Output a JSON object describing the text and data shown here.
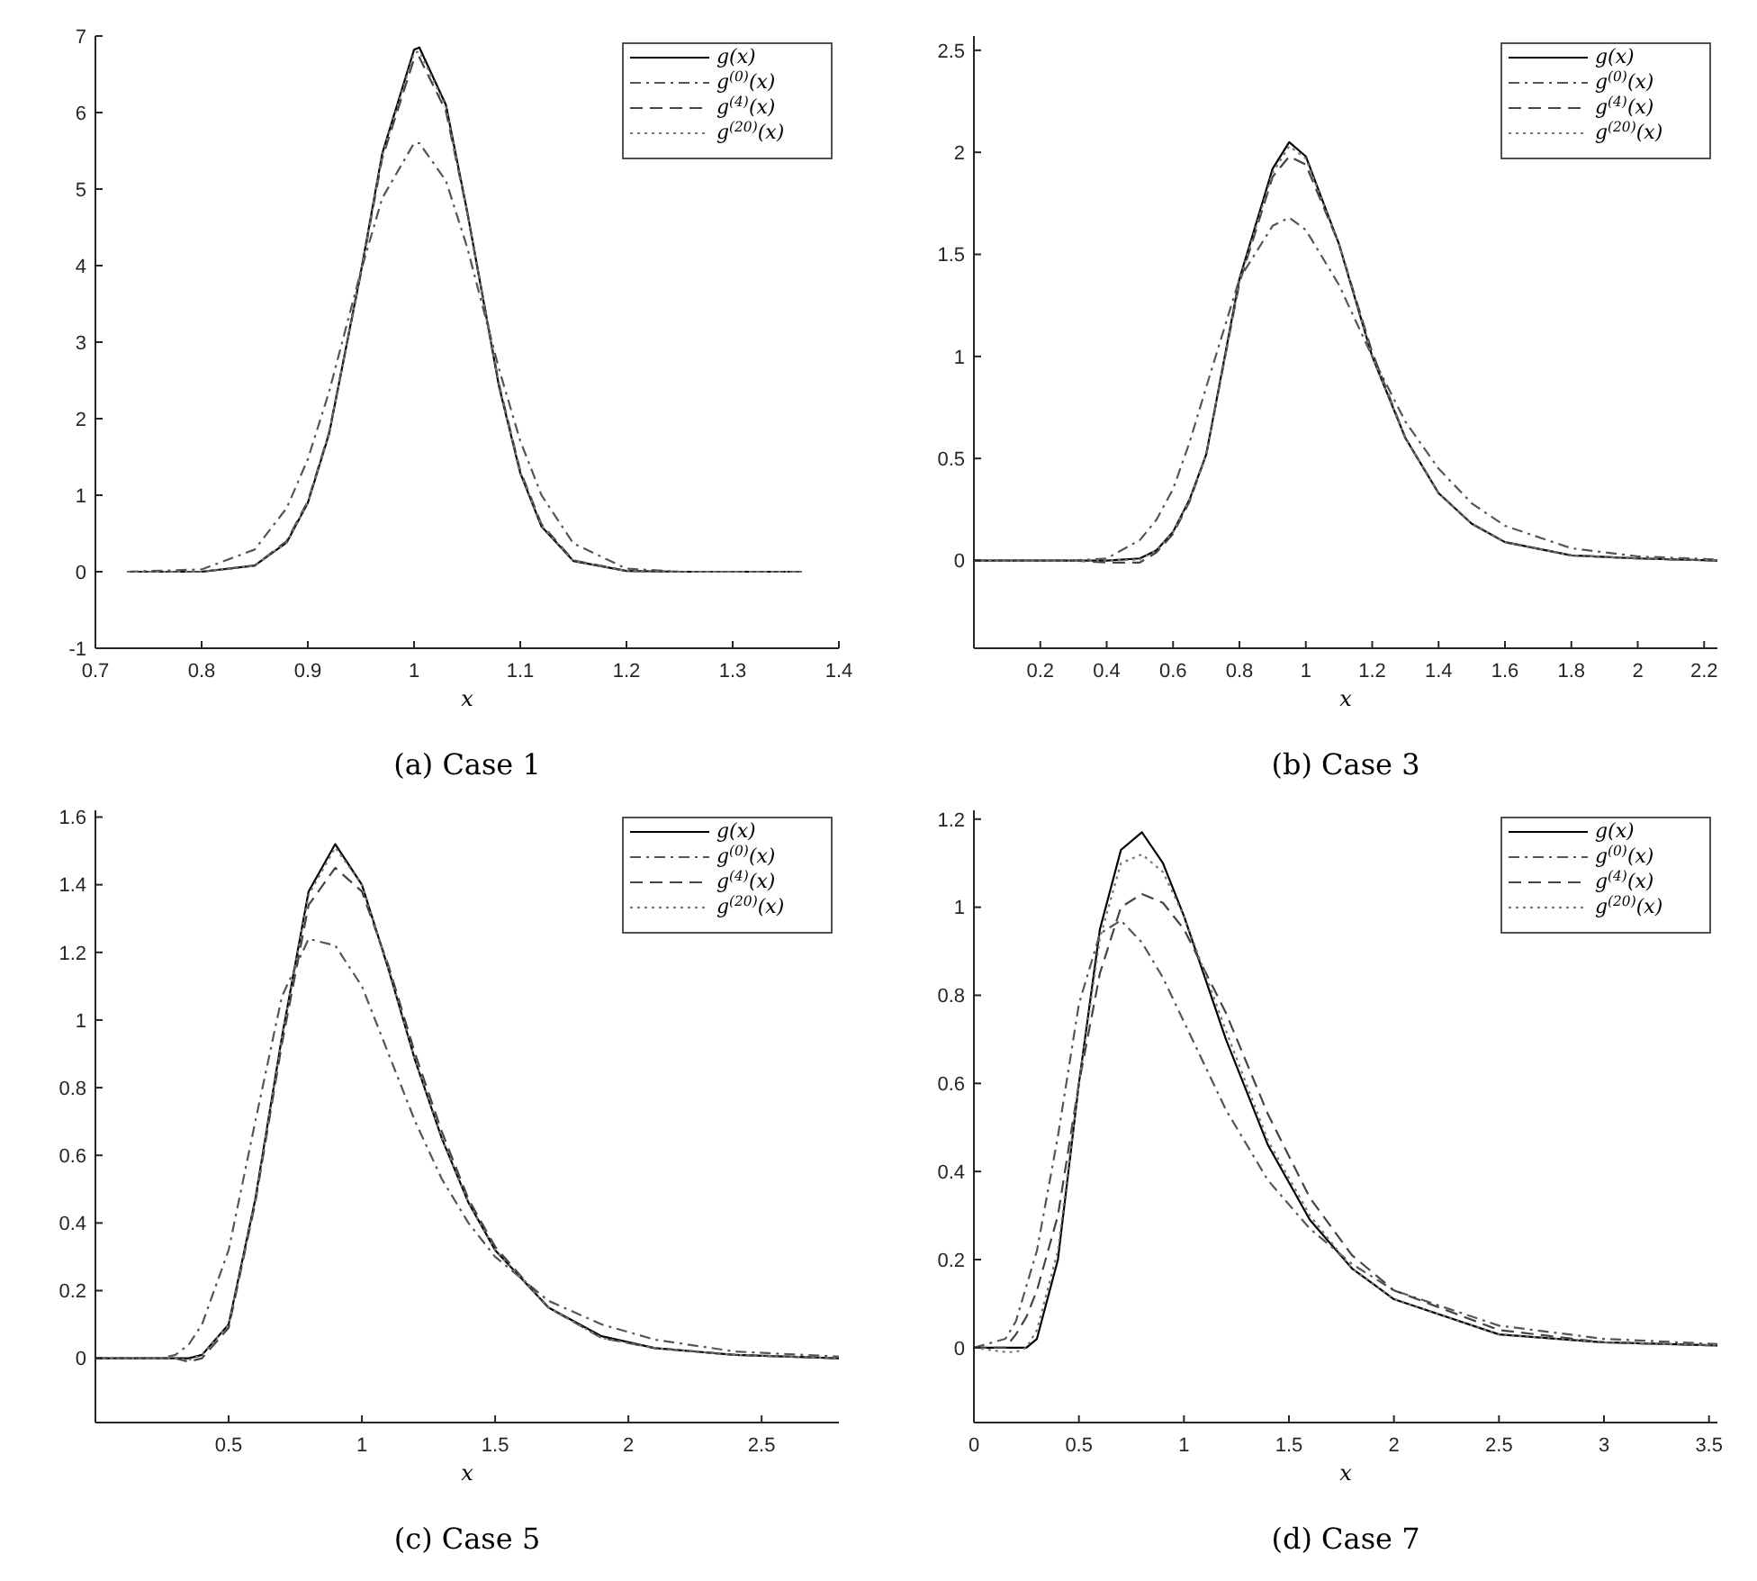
{
  "chart_data": [
    {
      "type": "line",
      "title": "(a) Case 1",
      "xlabel": "x",
      "legend": "top right",
      "xlim": [
        0.7,
        1.4
      ],
      "xticks": [
        0.7,
        0.8,
        0.9,
        1,
        1.1,
        1.2,
        1.3,
        1.4
      ],
      "ylim": [
        -1,
        7
      ],
      "yticks": [
        -1,
        0,
        1,
        2,
        3,
        4,
        5,
        6,
        7
      ],
      "x": [
        0.73,
        0.8,
        0.85,
        0.88,
        0.9,
        0.92,
        0.95,
        0.97,
        1.0,
        1.005,
        1.03,
        1.05,
        1.08,
        1.1,
        1.12,
        1.15,
        1.2,
        1.25,
        1.3,
        1.365
      ],
      "series": [
        {
          "name": "g(x)",
          "color": "#000000",
          "line_style": "solid",
          "values": [
            0,
            0,
            0.08,
            0.38,
            0.9,
            1.8,
            3.92,
            5.46,
            6.82,
            6.85,
            6.1,
            4.71,
            2.42,
            1.29,
            0.59,
            0.14,
            0.01,
            0,
            0,
            0
          ]
        },
        {
          "name": "g$^{(0)}$(x)",
          "color": "#555555",
          "line_style": "dashdot",
          "values": [
            0,
            0.03,
            0.29,
            0.83,
            1.47,
            2.35,
            3.93,
            4.88,
            5.6,
            5.6,
            5.11,
            4.24,
            2.65,
            1.71,
            1.0,
            0.37,
            0.04,
            0,
            0,
            0
          ]
        },
        {
          "name": "g$^{(4)}$(x)",
          "color": "#444444",
          "line_style": "dashed",
          "values": [
            0,
            0,
            0.08,
            0.4,
            0.92,
            1.82,
            3.9,
            5.4,
            6.7,
            6.72,
            6.02,
            4.7,
            2.45,
            1.32,
            0.62,
            0.15,
            0.01,
            0,
            0,
            0
          ]
        },
        {
          "name": "g$^{(20)}$(x)",
          "color": "#777777",
          "line_style": "dotted",
          "values": [
            0,
            0,
            0.08,
            0.38,
            0.9,
            1.8,
            3.92,
            5.44,
            6.78,
            6.8,
            6.08,
            4.7,
            2.42,
            1.3,
            0.6,
            0.14,
            0.01,
            0,
            0,
            0
          ]
        }
      ]
    },
    {
      "type": "line",
      "title": "(b) Case 3",
      "xlabel": "x",
      "legend": "top right",
      "xlim": [
        0,
        2.24
      ],
      "xticks": [
        0.2,
        0.4,
        0.6,
        0.8,
        1,
        1.2,
        1.4,
        1.6,
        1.8,
        2,
        2.2
      ],
      "ylim": [
        -0.43,
        2.57
      ],
      "yticks": [
        0,
        0.5,
        1,
        1.5,
        2,
        2.5
      ],
      "x": [
        0,
        0.3,
        0.4,
        0.5,
        0.55,
        0.6,
        0.65,
        0.7,
        0.8,
        0.9,
        0.95,
        1.0,
        1.1,
        1.2,
        1.3,
        1.4,
        1.5,
        1.6,
        1.8,
        2.0,
        2.24
      ],
      "series": [
        {
          "name": "g(x)",
          "color": "#000000",
          "line_style": "solid",
          "values": [
            0,
            0,
            0,
            0.01,
            0.05,
            0.14,
            0.3,
            0.52,
            1.38,
            1.92,
            2.05,
            1.98,
            1.55,
            1.0,
            0.6,
            0.33,
            0.18,
            0.09,
            0.025,
            0.01,
            0
          ]
        },
        {
          "name": "g$^{(0)}$(x)",
          "color": "#555555",
          "line_style": "dashdot",
          "values": [
            0,
            0,
            0.01,
            0.1,
            0.2,
            0.35,
            0.58,
            0.85,
            1.38,
            1.64,
            1.68,
            1.62,
            1.35,
            1.0,
            0.68,
            0.45,
            0.28,
            0.17,
            0.06,
            0.02,
            0.005
          ]
        },
        {
          "name": "g$^{(4)}$(x)",
          "color": "#444444",
          "line_style": "dashed",
          "values": [
            0,
            0,
            -0.01,
            -0.01,
            0.04,
            0.13,
            0.29,
            0.52,
            1.36,
            1.88,
            1.98,
            1.94,
            1.55,
            1.02,
            0.6,
            0.33,
            0.18,
            0.09,
            0.025,
            0.01,
            0
          ]
        },
        {
          "name": "g$^{(20)}$(x)",
          "color": "#777777",
          "line_style": "dotted",
          "values": [
            0,
            0,
            0,
            0.005,
            0.05,
            0.14,
            0.3,
            0.52,
            1.37,
            1.9,
            2.03,
            1.97,
            1.55,
            1.0,
            0.6,
            0.33,
            0.18,
            0.09,
            0.025,
            0.01,
            0
          ]
        }
      ]
    },
    {
      "type": "line",
      "title": "(c) Case 5",
      "xlabel": "x",
      "legend": "top right",
      "xlim": [
        0,
        2.79
      ],
      "xticks": [
        0.5,
        1,
        1.5,
        2,
        2.5
      ],
      "ylim": [
        -0.19,
        1.62
      ],
      "yticks": [
        0,
        0.2,
        0.4,
        0.6,
        0.8,
        1,
        1.2,
        1.4,
        1.6
      ],
      "x": [
        0,
        0.25,
        0.3,
        0.35,
        0.4,
        0.5,
        0.6,
        0.7,
        0.8,
        0.9,
        1.0,
        1.1,
        1.2,
        1.3,
        1.4,
        1.5,
        1.7,
        1.9,
        2.1,
        2.4,
        2.79
      ],
      "series": [
        {
          "name": "g(x)",
          "color": "#000000",
          "line_style": "solid",
          "values": [
            0,
            0,
            0,
            0,
            0.01,
            0.1,
            0.47,
            0.95,
            1.38,
            1.52,
            1.4,
            1.15,
            0.88,
            0.65,
            0.46,
            0.32,
            0.15,
            0.065,
            0.03,
            0.01,
            0
          ]
        },
        {
          "name": "g$^{(0)}$(x)",
          "color": "#555555",
          "line_style": "dashdot",
          "values": [
            0,
            0,
            0.01,
            0.04,
            0.1,
            0.32,
            0.7,
            1.07,
            1.24,
            1.22,
            1.1,
            0.9,
            0.7,
            0.53,
            0.4,
            0.3,
            0.17,
            0.1,
            0.055,
            0.02,
            0.005
          ]
        },
        {
          "name": "g$^{(4)}$(x)",
          "color": "#444444",
          "line_style": "dashed",
          "values": [
            0,
            0,
            0,
            -0.01,
            0,
            0.09,
            0.46,
            0.93,
            1.34,
            1.45,
            1.38,
            1.16,
            0.9,
            0.67,
            0.47,
            0.33,
            0.15,
            0.06,
            0.03,
            0.01,
            0
          ]
        },
        {
          "name": "g$^{(20)}$(x)",
          "color": "#777777",
          "line_style": "dotted",
          "values": [
            0,
            0,
            0,
            -0.005,
            0.01,
            0.1,
            0.47,
            0.95,
            1.37,
            1.51,
            1.4,
            1.15,
            0.88,
            0.65,
            0.46,
            0.32,
            0.15,
            0.06,
            0.03,
            0.01,
            0
          ]
        }
      ]
    },
    {
      "type": "line",
      "title": "(d) Case 7",
      "xlabel": "x",
      "legend": "top right",
      "xlim": [
        0,
        3.54
      ],
      "xticks": [
        0,
        0.5,
        1,
        1.5,
        2,
        2.5,
        3,
        3.5
      ],
      "ylim": [
        -0.17,
        1.22
      ],
      "yticks": [
        0,
        0.2,
        0.4,
        0.6,
        0.8,
        1,
        1.2
      ],
      "x": [
        0,
        0.15,
        0.2,
        0.25,
        0.3,
        0.4,
        0.5,
        0.6,
        0.7,
        0.8,
        0.9,
        1.0,
        1.2,
        1.4,
        1.6,
        1.8,
        2.0,
        2.5,
        3.0,
        3.54
      ],
      "series": [
        {
          "name": "g(x)",
          "color": "#000000",
          "line_style": "solid",
          "values": [
            0,
            0,
            0,
            0,
            0.02,
            0.2,
            0.6,
            0.95,
            1.13,
            1.17,
            1.1,
            0.98,
            0.7,
            0.46,
            0.29,
            0.18,
            0.11,
            0.03,
            0.012,
            0.005
          ]
        },
        {
          "name": "g$^{(0)}$(x)",
          "color": "#555555",
          "line_style": "dashdot",
          "values": [
            0,
            0.02,
            0.06,
            0.14,
            0.22,
            0.48,
            0.78,
            0.94,
            0.97,
            0.92,
            0.84,
            0.74,
            0.54,
            0.38,
            0.27,
            0.19,
            0.13,
            0.05,
            0.02,
            0.008
          ]
        },
        {
          "name": "g$^{(4)}$(x)",
          "color": "#444444",
          "line_style": "dashed",
          "values": [
            0,
            0,
            0.03,
            0.07,
            0.13,
            0.3,
            0.6,
            0.85,
            1.0,
            1.03,
            1.01,
            0.95,
            0.76,
            0.53,
            0.34,
            0.21,
            0.13,
            0.04,
            0.012,
            0.005
          ]
        },
        {
          "name": "g$^{(20)}$(x)",
          "color": "#777777",
          "line_style": "dotted",
          "values": [
            0,
            -0.01,
            -0.01,
            0,
            0.04,
            0.22,
            0.6,
            0.93,
            1.1,
            1.12,
            1.08,
            0.98,
            0.72,
            0.47,
            0.3,
            0.18,
            0.11,
            0.03,
            0.012,
            0.005
          ]
        }
      ]
    }
  ]
}
